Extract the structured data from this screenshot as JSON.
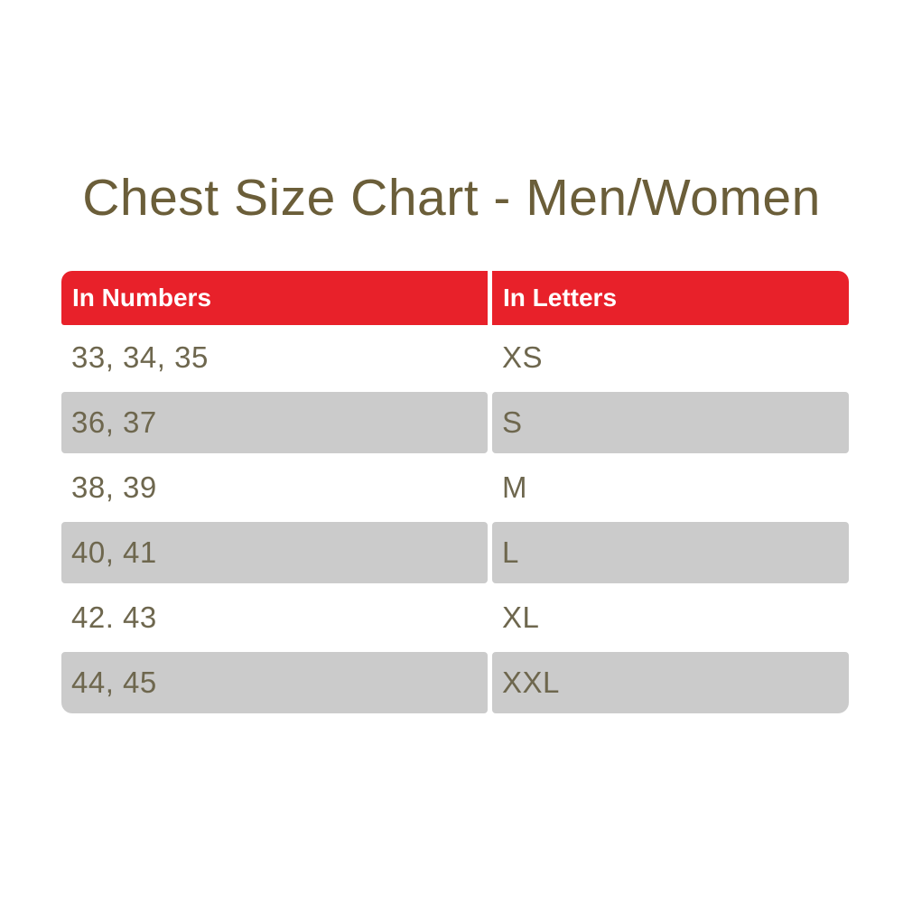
{
  "title": "Chest Size Chart - Men/Women",
  "chart_data": {
    "type": "table",
    "title": "Chest Size Chart - Men/Women",
    "columns": [
      "In Numbers",
      "In Letters"
    ],
    "rows": [
      [
        "33, 34, 35",
        "XS"
      ],
      [
        "36, 37",
        "S"
      ],
      [
        "38, 39",
        "M"
      ],
      [
        "40, 41",
        "L"
      ],
      [
        "42. 43",
        "XL"
      ],
      [
        "44, 45",
        "XXL"
      ]
    ],
    "layout_hints": {
      "header_bg": "#e8212a",
      "header_text_color": "#ffffff",
      "alt_row_bg": "#cbcbcb",
      "row_bg": "#ffffff",
      "body_text_color": "#6e674e",
      "title_color": "#6b5e39",
      "striping": "rows 2, 4, 6 gray; rows 1, 3, 5 white",
      "column_divider": "5px white gap"
    }
  }
}
